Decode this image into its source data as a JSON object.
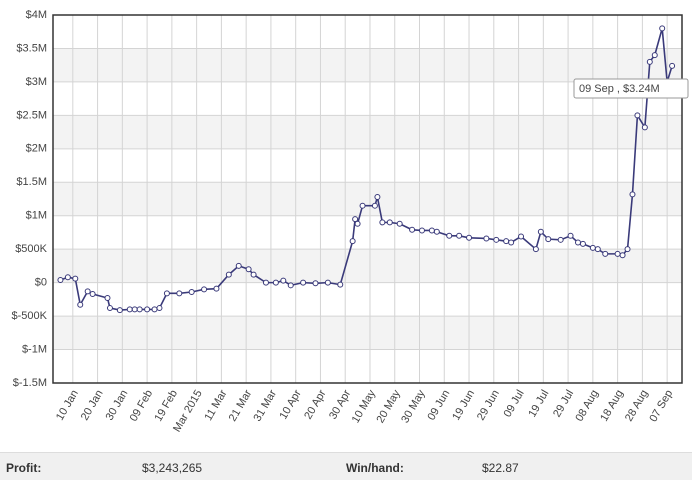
{
  "chart_data": {
    "type": "line",
    "x": [
      "2015-01-05",
      "2015-01-08",
      "2015-01-11",
      "2015-01-13",
      "2015-01-16",
      "2015-01-18",
      "2015-01-24",
      "2015-01-25",
      "2015-01-29",
      "2015-02-02",
      "2015-02-04",
      "2015-02-06",
      "2015-02-09",
      "2015-02-12",
      "2015-02-14",
      "2015-02-17",
      "2015-02-22",
      "2015-02-27",
      "2015-03-04",
      "2015-03-09",
      "2015-03-14",
      "2015-03-18",
      "2015-03-22",
      "2015-03-24",
      "2015-03-29",
      "2015-04-02",
      "2015-04-05",
      "2015-04-08",
      "2015-04-13",
      "2015-04-18",
      "2015-04-23",
      "2015-04-28",
      "2015-05-03",
      "2015-05-04",
      "2015-05-05",
      "2015-05-07",
      "2015-05-12",
      "2015-05-13",
      "2015-05-15",
      "2015-05-18",
      "2015-05-22",
      "2015-05-27",
      "2015-05-31",
      "2015-06-04",
      "2015-06-06",
      "2015-06-11",
      "2015-06-15",
      "2015-06-19",
      "2015-06-26",
      "2015-06-30",
      "2015-07-04",
      "2015-07-06",
      "2015-07-10",
      "2015-07-16",
      "2015-07-18",
      "2015-07-21",
      "2015-07-26",
      "2015-07-30",
      "2015-08-02",
      "2015-08-04",
      "2015-08-08",
      "2015-08-10",
      "2015-08-13",
      "2015-08-18",
      "2015-08-20",
      "2015-08-22",
      "2015-08-24",
      "2015-08-26",
      "2015-08-29",
      "2015-08-31",
      "2015-09-02",
      "2015-09-05",
      "2015-09-07",
      "2015-09-09"
    ],
    "series": [
      {
        "color": "#3a3a7a",
        "values": [
          40000,
          80000,
          60000,
          -330000,
          -130000,
          -170000,
          -230000,
          -380000,
          -410000,
          -400000,
          -400000,
          -400000,
          -400000,
          -400000,
          -380000,
          -160000,
          -160000,
          -140000,
          -100000,
          -90000,
          120000,
          250000,
          200000,
          120000,
          0,
          0,
          30000,
          -40000,
          0,
          -10000,
          0,
          -30000,
          620000,
          950000,
          880000,
          1150000,
          1150000,
          1280000,
          900000,
          900000,
          880000,
          790000,
          780000,
          780000,
          760000,
          700000,
          700000,
          670000,
          660000,
          640000,
          620000,
          600000,
          690000,
          500000,
          760000,
          650000,
          640000,
          700000,
          600000,
          580000,
          520000,
          500000,
          430000,
          430000,
          410000,
          500000,
          1320000,
          2500000,
          2320000,
          3300000,
          3400000,
          3800000,
          3000000,
          3240000
        ]
      }
    ],
    "xlim": [
      "2015-01-02",
      "2015-09-13"
    ],
    "xticks": [
      {
        "value": "2015-01-10",
        "label": "10 Jan"
      },
      {
        "value": "2015-01-20",
        "label": "20 Jan"
      },
      {
        "value": "2015-01-30",
        "label": "30 Jan"
      },
      {
        "value": "2015-02-09",
        "label": "09 Feb"
      },
      {
        "value": "2015-02-19",
        "label": "19 Feb"
      },
      {
        "value": "2015-03-01",
        "label": "Mar 2015"
      },
      {
        "value": "2015-03-11",
        "label": "11 Mar"
      },
      {
        "value": "2015-03-21",
        "label": "21 Mar"
      },
      {
        "value": "2015-03-31",
        "label": "31 Mar"
      },
      {
        "value": "2015-04-10",
        "label": "10 Apr"
      },
      {
        "value": "2015-04-20",
        "label": "20 Apr"
      },
      {
        "value": "2015-04-30",
        "label": "30 Apr"
      },
      {
        "value": "2015-05-10",
        "label": "10 May"
      },
      {
        "value": "2015-05-20",
        "label": "20 May"
      },
      {
        "value": "2015-05-30",
        "label": "30 May"
      },
      {
        "value": "2015-06-09",
        "label": "09 Jun"
      },
      {
        "value": "2015-06-19",
        "label": "19 Jun"
      },
      {
        "value": "2015-06-29",
        "label": "29 Jun"
      },
      {
        "value": "2015-07-09",
        "label": "09 Jul"
      },
      {
        "value": "2015-07-19",
        "label": "19 Jul"
      },
      {
        "value": "2015-07-29",
        "label": "29 Jul"
      },
      {
        "value": "2015-08-08",
        "label": "08 Aug"
      },
      {
        "value": "2015-08-18",
        "label": "18 Aug"
      },
      {
        "value": "2015-08-28",
        "label": "28 Aug"
      },
      {
        "value": "2015-09-07",
        "label": "07 Sep"
      }
    ],
    "ylim": [
      -1500000,
      4000000
    ],
    "yticks": [
      {
        "value": -1500000,
        "label": "$-1.5M"
      },
      {
        "value": -1000000,
        "label": "$-1M"
      },
      {
        "value": -500000,
        "label": "$-500K"
      },
      {
        "value": 0,
        "label": "$0"
      },
      {
        "value": 500000,
        "label": "$500K"
      },
      {
        "value": 1000000,
        "label": "$1M"
      },
      {
        "value": 1500000,
        "label": "$1.5M"
      },
      {
        "value": 2000000,
        "label": "$2M"
      },
      {
        "value": 2500000,
        "label": "$2.5M"
      },
      {
        "value": 3000000,
        "label": "$3M"
      },
      {
        "value": 3500000,
        "label": "$3.5M"
      },
      {
        "value": 4000000,
        "label": "$4M"
      }
    ],
    "grid": true,
    "tooltip": "09 Sep , $3.24M"
  },
  "footer": {
    "profit_label": "Profit:",
    "profit": "$3,243,265",
    "win_label": "Win/hand:",
    "win": "$22.87"
  }
}
